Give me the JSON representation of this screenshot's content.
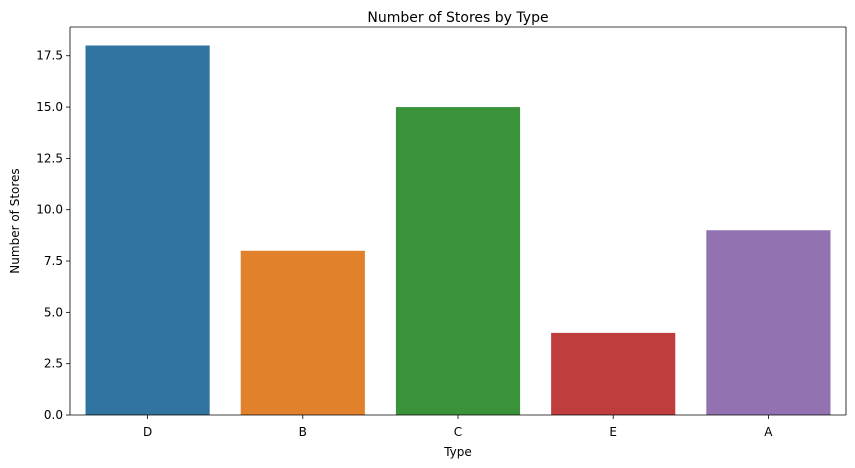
{
  "chart_data": {
    "type": "bar",
    "title": "Number of Stores by Type",
    "xlabel": "Type",
    "ylabel": "Number of Stores",
    "categories": [
      "D",
      "B",
      "C",
      "E",
      "A"
    ],
    "values": [
      18,
      8,
      15,
      4,
      9
    ],
    "colors": [
      "#3274a1",
      "#e1812c",
      "#3a923a",
      "#c03d3e",
      "#9372b2"
    ],
    "ylim": [
      0,
      18.9
    ],
    "yticks": [
      0.0,
      2.5,
      5.0,
      7.5,
      10.0,
      12.5,
      15.0,
      17.5
    ],
    "ytick_labels": [
      "0.0",
      "2.5",
      "5.0",
      "7.5",
      "10.0",
      "12.5",
      "15.0",
      "17.5"
    ],
    "grid": false,
    "legend": "none"
  }
}
